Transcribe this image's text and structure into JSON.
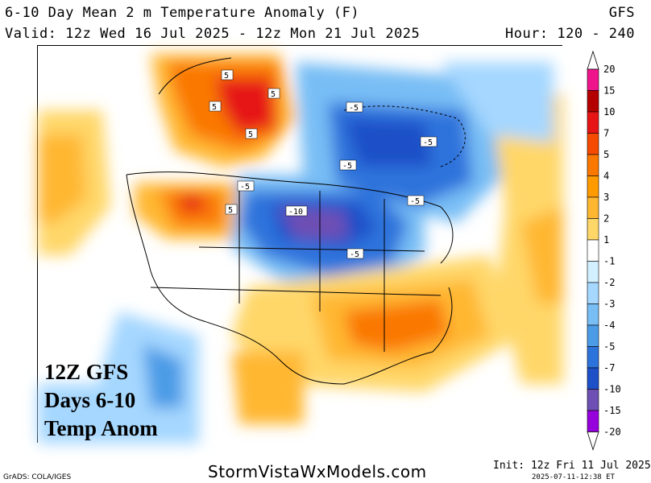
{
  "header": {
    "title": "6-10 Day Mean 2 m Temperature Anomaly (F)",
    "model": "GFS",
    "valid": "Valid: 12z Wed 16 Jul 2025 - 12z Mon 21 Jul 2025",
    "hour": "Hour: 120 - 240"
  },
  "overlay": {
    "line1": "12Z GFS",
    "line2": "Days 6-10",
    "line3": "Temp Anom"
  },
  "legend": {
    "labels": [
      "20",
      "15",
      "10",
      "7",
      "5",
      "4",
      "3",
      "2",
      "1",
      "-1",
      "-2",
      "-3",
      "-4",
      "-5",
      "-7",
      "-10",
      "-15",
      "-20"
    ],
    "colors": [
      "#f0148c",
      "#b40000",
      "#e61414",
      "#f54b00",
      "#fa7800",
      "#ff9b00",
      "#ffb732",
      "#ffd769",
      "#ffffff",
      "#d2f0ff",
      "#a5d7ff",
      "#78bef5",
      "#4b9be6",
      "#2d73dc",
      "#1e50c8",
      "#6e50b4",
      "#9600dc"
    ]
  },
  "contour_labels": [
    "-5",
    "-5",
    "-5",
    "-5",
    "-5",
    "-10",
    "-5",
    "5",
    "5",
    "5",
    "5",
    "5"
  ],
  "footer": {
    "grads": "GrADS: COLA/IGES",
    "website": "StormVistaWxModels.com",
    "init": "Init: 12z Fri 11 Jul 2025",
    "stamp": "2025-07-11-12:38 ET"
  }
}
